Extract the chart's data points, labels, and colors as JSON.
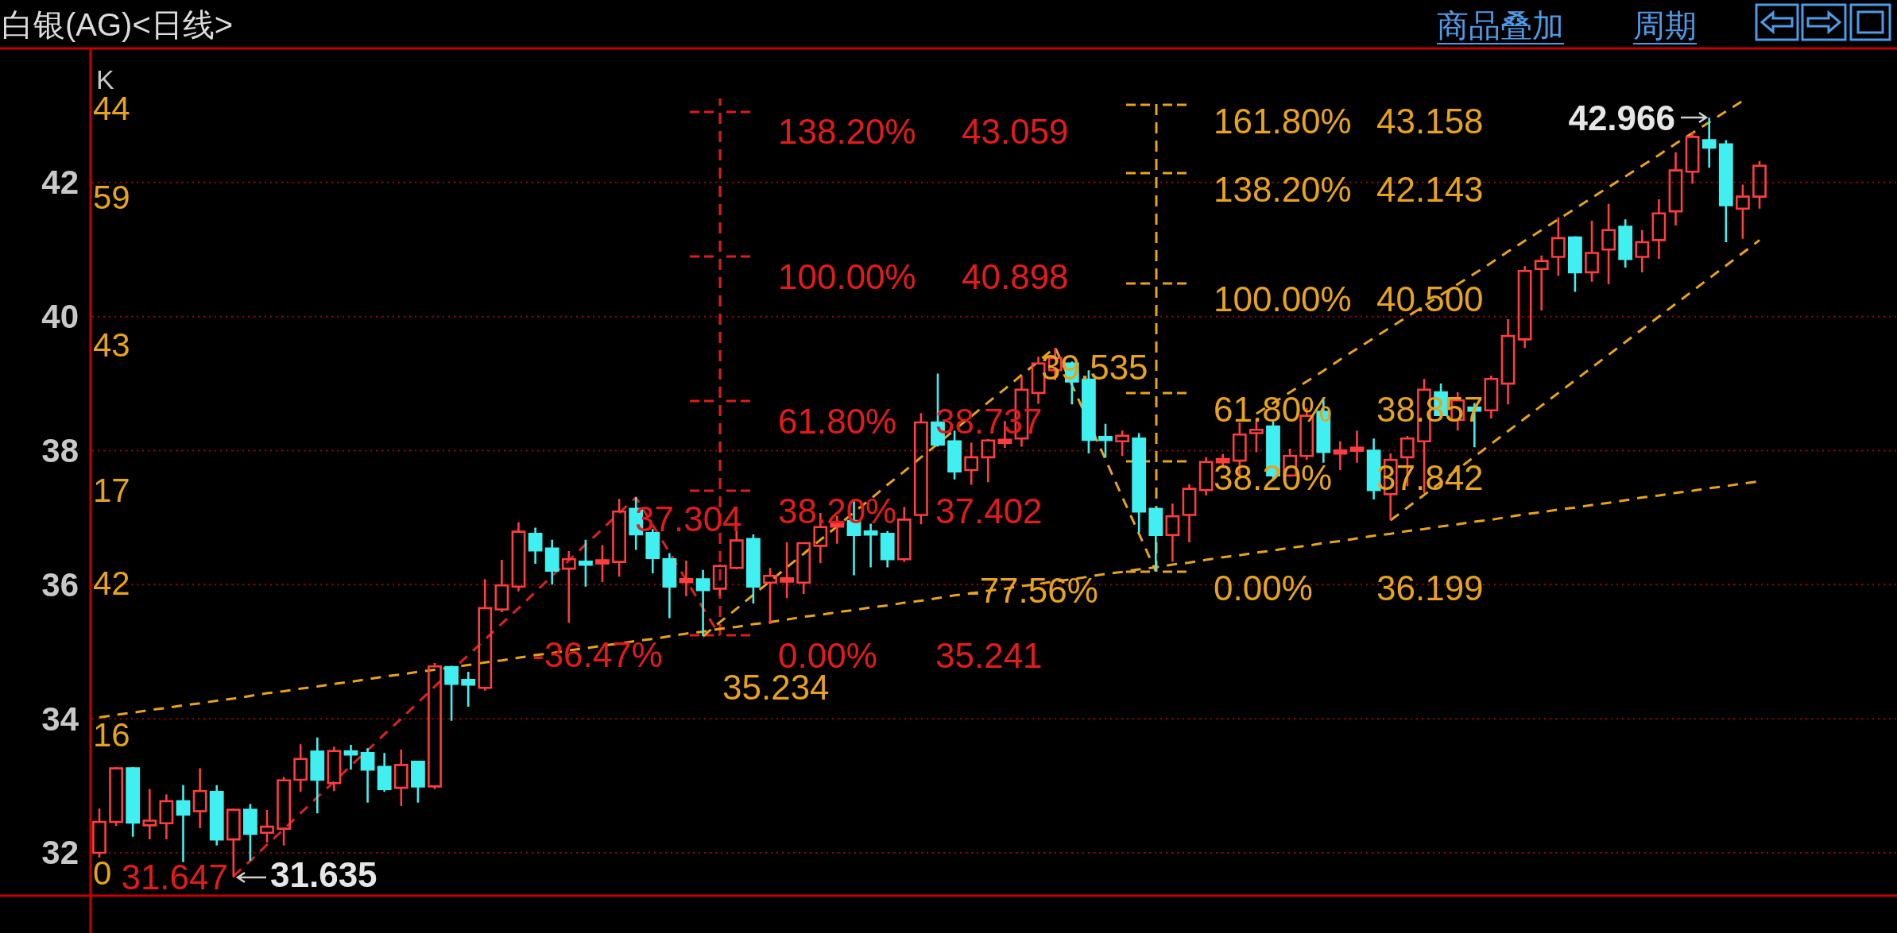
{
  "chart_data": {
    "type": "candlestick",
    "title": "白银(AG)<日线>",
    "categories": [
      null,
      null,
      null,
      null,
      null,
      null,
      null,
      null,
      null,
      null,
      null,
      null,
      null,
      null,
      null,
      null,
      null,
      null,
      null,
      null,
      null,
      null,
      null,
      null,
      null,
      null,
      null,
      null,
      null,
      null,
      null,
      null,
      null,
      null,
      null,
      null,
      null,
      null,
      null,
      null,
      null,
      null,
      null,
      null,
      null,
      null,
      null,
      null,
      null,
      null,
      null,
      null,
      null,
      null,
      null,
      null,
      null,
      null,
      null,
      null,
      null,
      null,
      null,
      null,
      null,
      null,
      null,
      null,
      null,
      null,
      null,
      null,
      null,
      null,
      null,
      null,
      null,
      null,
      null,
      null,
      null,
      null,
      null,
      null,
      null,
      null,
      null,
      null,
      null,
      null,
      null,
      null,
      null,
      null,
      null,
      null,
      null,
      null,
      null,
      null
    ],
    "ohlc": [
      [
        32.0,
        32.66,
        31.93,
        32.46
      ],
      [
        32.46,
        33.28,
        32.4,
        33.26
      ],
      [
        33.26,
        33.28,
        32.24,
        32.45
      ],
      [
        32.41,
        32.95,
        32.2,
        32.48
      ],
      [
        32.44,
        32.87,
        32.2,
        32.77
      ],
      [
        32.77,
        33.01,
        31.86,
        32.57
      ],
      [
        32.62,
        33.26,
        32.37,
        32.92
      ],
      [
        32.91,
        33.01,
        32.11,
        32.2
      ],
      [
        32.2,
        32.66,
        31.635,
        32.64
      ],
      [
        32.64,
        32.73,
        31.88,
        32.28
      ],
      [
        32.3,
        32.64,
        32.15,
        32.39
      ],
      [
        32.36,
        33.13,
        32.11,
        33.08
      ],
      [
        33.09,
        33.62,
        32.91,
        33.4
      ],
      [
        33.51,
        33.72,
        32.59,
        33.09
      ],
      [
        33.04,
        33.58,
        32.92,
        33.52
      ],
      [
        33.5,
        33.61,
        33.24,
        33.48
      ],
      [
        33.49,
        33.56,
        32.75,
        33.24
      ],
      [
        33.28,
        33.49,
        32.91,
        32.95
      ],
      [
        32.97,
        33.54,
        32.7,
        33.31
      ],
      [
        33.36,
        33.36,
        32.75,
        32.99
      ],
      [
        32.99,
        34.83,
        32.95,
        34.78
      ],
      [
        34.77,
        34.79,
        33.97,
        34.52
      ],
      [
        34.58,
        34.7,
        34.18,
        34.51
      ],
      [
        34.46,
        36.08,
        34.42,
        35.65
      ],
      [
        35.63,
        36.37,
        35.59,
        35.99
      ],
      [
        35.97,
        36.93,
        35.9,
        36.79
      ],
      [
        36.76,
        36.85,
        36.31,
        36.51
      ],
      [
        36.54,
        36.67,
        36.0,
        36.21
      ],
      [
        36.24,
        36.5,
        35.43,
        36.38
      ],
      [
        36.33,
        36.67,
        35.97,
        36.31
      ],
      [
        36.33,
        36.59,
        36.04,
        36.35
      ],
      [
        36.34,
        37.28,
        36.12,
        37.09
      ],
      [
        37.13,
        37.304,
        36.52,
        36.75
      ],
      [
        36.77,
        36.83,
        36.17,
        36.4
      ],
      [
        36.38,
        36.47,
        35.5,
        35.97
      ],
      [
        36.05,
        36.36,
        35.83,
        36.07
      ],
      [
        36.08,
        36.22,
        35.234,
        35.92
      ],
      [
        35.94,
        36.3,
        35.83,
        36.28
      ],
      [
        36.25,
        36.88,
        36.23,
        36.66
      ],
      [
        36.68,
        36.75,
        35.72,
        35.97
      ],
      [
        36.03,
        36.25,
        35.41,
        36.13
      ],
      [
        36.06,
        36.63,
        35.8,
        36.08
      ],
      [
        36.03,
        36.63,
        35.86,
        36.62
      ],
      [
        36.58,
        37.07,
        36.32,
        36.86
      ],
      [
        36.88,
        37.03,
        36.61,
        36.9
      ],
      [
        36.95,
        37.27,
        36.14,
        36.74
      ],
      [
        36.78,
        36.91,
        36.26,
        36.76
      ],
      [
        36.76,
        36.8,
        36.26,
        36.38
      ],
      [
        36.38,
        37.16,
        36.34,
        36.97
      ],
      [
        37.04,
        38.56,
        36.9,
        38.42
      ],
      [
        38.42,
        39.15,
        38.06,
        38.09
      ],
      [
        38.14,
        38.3,
        37.57,
        37.69
      ],
      [
        37.71,
        38.12,
        37.49,
        37.9
      ],
      [
        37.9,
        38.17,
        37.53,
        38.15
      ],
      [
        38.13,
        38.44,
        38.04,
        38.15
      ],
      [
        38.18,
        39.11,
        38.06,
        38.91
      ],
      [
        38.86,
        39.4,
        38.7,
        39.3
      ],
      [
        39.2,
        39.535,
        39.05,
        39.38
      ],
      [
        39.3,
        39.33,
        38.69,
        39.03
      ],
      [
        39.06,
        39.2,
        37.96,
        38.16
      ],
      [
        38.19,
        38.4,
        37.9,
        38.17
      ],
      [
        38.14,
        38.3,
        37.92,
        38.22
      ],
      [
        38.18,
        38.26,
        36.78,
        37.09
      ],
      [
        37.13,
        37.15,
        36.199,
        36.74
      ],
      [
        36.74,
        37.21,
        36.34,
        37.02
      ],
      [
        37.04,
        37.5,
        36.63,
        37.43
      ],
      [
        37.41,
        37.9,
        37.33,
        37.83
      ],
      [
        37.84,
        37.95,
        37.77,
        37.86
      ],
      [
        37.85,
        38.42,
        37.63,
        38.24
      ],
      [
        38.26,
        38.47,
        37.98,
        38.31
      ],
      [
        38.36,
        38.44,
        37.55,
        37.63
      ],
      [
        37.63,
        38.03,
        37.61,
        37.92
      ],
      [
        37.92,
        38.64,
        37.86,
        38.52
      ],
      [
        38.58,
        38.77,
        37.82,
        37.98
      ],
      [
        37.97,
        38.14,
        37.71,
        37.99
      ],
      [
        38.01,
        38.3,
        37.82,
        38.03
      ],
      [
        38.0,
        38.18,
        37.27,
        37.41
      ],
      [
        37.35,
        37.96,
        36.96,
        37.86
      ],
      [
        37.9,
        38.22,
        37.47,
        38.18
      ],
      [
        38.14,
        39.07,
        37.37,
        38.91
      ],
      [
        38.87,
        39.0,
        38.51,
        38.53
      ],
      [
        38.46,
        38.87,
        38.3,
        38.75
      ],
      [
        38.63,
        38.71,
        38.05,
        38.61
      ],
      [
        38.6,
        39.12,
        38.48,
        39.07
      ],
      [
        39.0,
        39.96,
        38.69,
        39.71
      ],
      [
        39.66,
        40.75,
        39.53,
        40.68
      ],
      [
        40.71,
        40.91,
        40.09,
        40.83
      ],
      [
        40.89,
        41.48,
        40.61,
        41.17
      ],
      [
        41.18,
        41.2,
        40.37,
        40.66
      ],
      [
        40.66,
        41.43,
        40.52,
        40.95
      ],
      [
        41.0,
        41.68,
        40.48,
        41.29
      ],
      [
        41.34,
        41.45,
        40.73,
        40.86
      ],
      [
        40.89,
        41.29,
        40.66,
        41.11
      ],
      [
        41.14,
        41.75,
        40.86,
        41.54
      ],
      [
        41.57,
        42.45,
        41.36,
        42.18
      ],
      [
        42.16,
        42.75,
        41.98,
        42.68
      ],
      [
        42.63,
        42.966,
        42.22,
        42.52
      ],
      [
        42.57,
        42.63,
        41.11,
        41.66
      ],
      [
        41.61,
        41.97,
        41.16,
        41.79
      ],
      [
        41.79,
        42.32,
        41.61,
        42.25
      ]
    ],
    "colors": [
      "#ff3d3d",
      "#ff3d3d",
      "#40f0f0",
      "#ff3d3d",
      "#ff3d3d",
      "#40f0f0",
      "#ff3d3d",
      "#40f0f0",
      "#ff3d3d",
      "#40f0f0",
      "#ff3d3d",
      "#ff3d3d",
      "#ff3d3d",
      "#40f0f0",
      "#ff3d3d",
      "#40f0f0",
      "#40f0f0",
      "#40f0f0",
      "#ff3d3d",
      "#40f0f0",
      "#ff3d3d",
      "#40f0f0",
      "#40f0f0",
      "#ff3d3d",
      "#ff3d3d",
      "#ff3d3d",
      "#40f0f0",
      "#40f0f0",
      "#ff3d3d",
      "#40f0f0",
      "#ff3d3d",
      "#ff3d3d",
      "#40f0f0",
      "#40f0f0",
      "#40f0f0",
      "#ff3d3d",
      "#40f0f0",
      "#ff3d3d",
      "#ff3d3d",
      "#40f0f0",
      "#ff3d3d",
      "#ff3d3d",
      "#ff3d3d",
      "#ff3d3d",
      "#ff3d3d",
      "#40f0f0",
      "#40f0f0",
      "#40f0f0",
      "#ff3d3d",
      "#ff3d3d",
      "#40f0f0",
      "#40f0f0",
      "#ff3d3d",
      "#ff3d3d",
      "#ff3d3d",
      "#ff3d3d",
      "#ff3d3d",
      "#ff3d3d",
      "#40f0f0",
      "#40f0f0",
      "#40f0f0",
      "#ff3d3d",
      "#40f0f0",
      "#40f0f0",
      "#ff3d3d",
      "#ff3d3d",
      "#ff3d3d",
      "#ff3d3d",
      "#ff3d3d",
      "#ff3d3d",
      "#40f0f0",
      "#ff3d3d",
      "#ff3d3d",
      "#40f0f0",
      "#ff3d3d",
      "#ff3d3d",
      "#40f0f0",
      "#ff3d3d",
      "#ff3d3d",
      "#ff3d3d",
      "#40f0f0",
      "#ff3d3d",
      "#40f0f0",
      "#ff3d3d",
      "#ff3d3d",
      "#ff3d3d",
      "#ff3d3d",
      "#ff3d3d",
      "#40f0f0",
      "#ff3d3d",
      "#ff3d3d",
      "#40f0f0",
      "#ff3d3d",
      "#ff3d3d",
      "#ff3d3d",
      "#ff3d3d",
      "#40f0f0",
      "#40f0f0",
      "#ff3d3d",
      "#ff3d3d"
    ],
    "series": [
      {
        "type": "line",
        "color": "#e8a31d",
        "line_style": "dashed",
        "values": [
          34.02,
          34.06,
          34.09,
          34.13,
          34.16,
          34.2,
          34.23,
          34.27,
          34.3,
          34.34,
          34.38,
          34.41,
          34.45,
          34.48,
          34.52,
          34.55,
          34.59,
          34.63,
          34.66,
          34.7,
          34.73,
          null,
          34.8,
          34.84,
          34.87,
          34.91,
          34.95,
          34.98,
          35.02,
          35.05,
          35.09,
          35.12,
          35.16,
          35.19,
          35.23,
          35.27,
          35.3,
          35.34,
          35.37,
          35.41,
          35.44,
          35.48,
          35.52,
          35.55,
          35.59,
          35.62,
          35.66,
          35.69,
          35.73,
          35.76,
          35.8,
          35.84,
          35.87,
          35.91,
          35.94,
          35.98,
          36.01,
          36.05,
          36.08,
          36.12,
          36.16,
          36.19,
          36.23,
          36.26,
          36.3,
          36.33,
          36.37,
          36.41,
          36.44,
          36.48,
          36.51,
          36.55,
          36.58,
          36.62,
          36.65,
          36.69,
          36.73,
          36.76,
          36.8,
          36.83,
          36.87,
          36.9,
          36.94,
          36.97,
          37.01,
          37.05,
          37.08,
          37.12,
          37.15,
          37.19,
          37.22,
          37.26,
          37.3,
          37.33,
          37.37,
          37.4,
          37.44,
          37.47,
          37.51,
          37.54
        ]
      },
      {
        "type": "line",
        "color": "#e02020",
        "line_style": "dashed",
        "values": [
          null,
          null,
          null,
          null,
          null,
          null,
          null,
          null,
          31.65,
          31.88,
          32.12,
          32.35,
          32.59,
          32.83,
          33.06,
          33.3,
          33.53,
          33.77,
          34.0,
          34.24,
          34.48,
          null,
          34.95,
          35.18,
          35.42,
          35.65,
          35.89,
          36.13,
          36.36,
          36.6,
          36.83,
          37.07,
          37.3,
          36.89,
          36.48,
          36.07,
          35.65,
          35.24,
          null,
          null,
          null,
          null,
          null,
          null,
          null,
          null,
          null,
          null,
          null,
          null,
          null,
          null,
          null,
          null,
          null,
          null,
          null,
          null,
          null,
          null,
          null,
          null,
          null,
          null,
          null,
          null,
          null,
          null,
          null,
          null,
          null,
          null,
          null,
          null,
          null,
          null,
          null,
          null,
          null,
          null,
          null,
          null,
          null,
          null,
          null,
          null,
          null,
          null,
          null,
          null,
          null,
          null,
          null,
          null,
          null,
          null,
          null,
          null,
          null,
          null
        ]
      },
      {
        "type": "line",
        "color": "#e8a31d",
        "line_style": "dashed",
        "values": [
          null,
          null,
          null,
          null,
          null,
          null,
          null,
          null,
          null,
          null,
          null,
          null,
          null,
          null,
          null,
          null,
          null,
          null,
          null,
          null,
          null,
          null,
          null,
          null,
          null,
          null,
          null,
          null,
          null,
          null,
          null,
          null,
          null,
          null,
          null,
          null,
          35.23,
          35.44,
          35.64,
          35.85,
          36.05,
          36.26,
          36.46,
          36.67,
          36.87,
          37.08,
          37.28,
          37.49,
          37.69,
          37.9,
          38.1,
          38.31,
          38.51,
          38.72,
          38.92,
          39.13,
          39.33,
          39.54,
          38.98,
          null,
          37.87,
          37.31,
          36.76,
          36.2,
          null,
          null,
          null,
          null,
          null,
          null,
          null,
          null,
          null,
          null,
          null,
          null,
          null,
          null,
          null,
          null,
          null,
          null,
          null,
          null,
          null,
          null,
          null,
          null,
          null,
          null,
          null,
          null,
          null,
          null,
          null,
          null,
          null,
          null,
          null,
          null
        ]
      },
      {
        "type": "line",
        "color": "#e8a31d",
        "line_style": "dashed",
        "values": [
          null,
          null,
          null,
          null,
          null,
          null,
          null,
          null,
          null,
          null,
          null,
          null,
          null,
          null,
          null,
          null,
          null,
          null,
          null,
          null,
          null,
          null,
          null,
          null,
          null,
          null,
          null,
          null,
          null,
          null,
          null,
          null,
          null,
          null,
          null,
          null,
          null,
          null,
          null,
          null,
          null,
          null,
          null,
          null,
          null,
          null,
          null,
          null,
          null,
          null,
          null,
          null,
          null,
          null,
          null,
          null,
          null,
          null,
          null,
          null,
          null,
          null,
          null,
          null,
          null,
          null,
          null,
          null,
          null,
          38.55,
          38.71,
          38.87,
          39.03,
          39.19,
          39.36,
          39.52,
          39.68,
          39.84,
          40.0,
          40.16,
          40.32,
          40.48,
          40.64,
          40.8,
          40.97,
          41.13,
          41.29,
          41.45,
          41.61,
          41.77,
          41.93,
          42.09,
          42.25,
          42.41,
          42.58,
          42.74,
          42.9,
          43.06,
          43.22,
          null
        ]
      },
      {
        "type": "line",
        "color": "#e8a31d",
        "line_style": "dashed",
        "values": [
          null,
          null,
          null,
          null,
          null,
          null,
          null,
          null,
          null,
          null,
          null,
          null,
          null,
          null,
          null,
          null,
          null,
          null,
          null,
          null,
          null,
          null,
          null,
          null,
          null,
          null,
          null,
          null,
          null,
          null,
          null,
          null,
          null,
          null,
          null,
          null,
          null,
          null,
          null,
          null,
          null,
          null,
          null,
          null,
          null,
          null,
          null,
          null,
          null,
          null,
          null,
          null,
          null,
          null,
          null,
          null,
          null,
          null,
          null,
          null,
          null,
          null,
          null,
          null,
          null,
          null,
          null,
          null,
          null,
          null,
          null,
          null,
          null,
          null,
          null,
          null,
          null,
          36.96,
          37.15,
          37.34,
          37.53,
          37.72,
          37.91,
          38.1,
          38.29,
          38.48,
          38.67,
          38.86,
          39.05,
          39.24,
          39.43,
          39.62,
          39.81,
          40.0,
          40.19,
          40.38,
          40.57,
          40.76,
          40.95,
          41.14
        ]
      }
    ],
    "ylim": [
      31.36,
      44.0
    ],
    "yticks": [
      32,
      34,
      36,
      38,
      40,
      42
    ],
    "grid": "y",
    "tick_labels": "y",
    "annotations": [
      "K",
      "商品叠加",
      "周期",
      "138.20%",
      "43.059",
      "100.00%",
      "40.898",
      "61.80%",
      "38.737",
      "38.20%",
      "37.402",
      "0.00%",
      "35.241",
      "-36.47%",
      "37.304",
      "31.647",
      "161.80%",
      "43.158",
      "138.20%",
      "42.143",
      "100.00%",
      "40.500",
      "61.80%",
      "38.857",
      "38.20%",
      "37.842",
      "0.00%",
      "36.199",
      "39.535",
      "-77.56%",
      "35.234",
      "42.966",
      "31.635",
      "44",
      "59",
      "43",
      "17",
      "42",
      "16",
      "0"
    ]
  }
}
